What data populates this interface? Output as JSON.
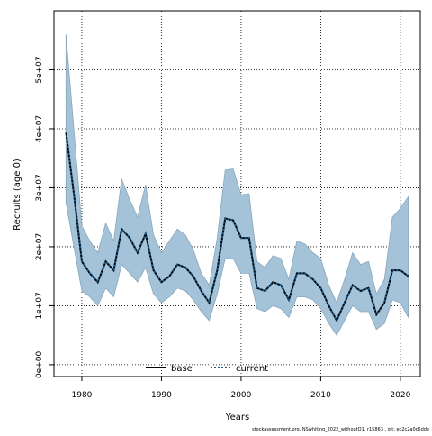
{
  "chart_data": {
    "type": "line",
    "title": "",
    "xlabel": "Years",
    "ylabel": "Recruits (age 0)",
    "xlim": [
      1976.5,
      2022.5
    ],
    "ylim": [
      -2000000,
      60000000
    ],
    "x_ticks": [
      1980,
      1990,
      2000,
      2010,
      2020
    ],
    "x_tick_labels": [
      "1980",
      "1990",
      "2000",
      "2010",
      "2020"
    ],
    "y_ticks": [
      0,
      10000000,
      20000000,
      30000000,
      40000000,
      50000000
    ],
    "y_tick_labels": [
      "0e+00",
      "1e+07",
      "2e+07",
      "3e+07",
      "4e+07",
      "5e+07"
    ],
    "grid": true,
    "legend_position": "bottom",
    "x": [
      1978,
      1979,
      1980,
      1981,
      1982,
      1983,
      1984,
      1985,
      1986,
      1987,
      1988,
      1989,
      1990,
      1991,
      1992,
      1993,
      1994,
      1995,
      1996,
      1997,
      1998,
      1999,
      2000,
      2001,
      2002,
      2003,
      2004,
      2005,
      2006,
      2007,
      2008,
      2009,
      2010,
      2011,
      2012,
      2013,
      2014,
      2015,
      2016,
      2017,
      2018,
      2019,
      2020,
      2021
    ],
    "series": [
      {
        "name": "current",
        "values": [
          39500000,
          29000000,
          17500000,
          15500000,
          14000000,
          17500000,
          16000000,
          23000000,
          21500000,
          19000000,
          22200000,
          16000000,
          14000000,
          15000000,
          17000000,
          16500000,
          15000000,
          12500000,
          10500000,
          16000000,
          24800000,
          24500000,
          21500000,
          21500000,
          13000000,
          12500000,
          14000000,
          13500000,
          11000000,
          15500000,
          15500000,
          14500000,
          13000000,
          10000000,
          7500000,
          10500000,
          13500000,
          12500000,
          13000000,
          8500000,
          10500000,
          16000000,
          16000000,
          15000000
        ]
      },
      {
        "name": "base",
        "values": [
          39500000,
          29000000,
          17500000,
          15500000,
          14000000,
          17500000,
          16000000,
          23000000,
          21500000,
          19000000,
          22200000,
          16000000,
          14000000,
          15000000,
          17000000,
          16500000,
          15000000,
          12500000,
          10500000,
          16000000,
          24800000,
          24500000,
          21500000,
          21500000,
          13000000,
          12500000,
          14000000,
          13500000,
          11000000,
          15500000,
          15500000,
          14500000,
          13000000,
          10000000,
          7500000,
          10500000,
          13500000,
          12500000,
          13000000,
          8500000,
          10500000,
          16000000,
          16000000,
          15000000
        ]
      }
    ],
    "band_upper": [
      56000000,
      40000000,
      23500000,
      21000000,
      19000000,
      24000000,
      21000000,
      31500000,
      28000000,
      25000000,
      30500000,
      22000000,
      19000000,
      21000000,
      23000000,
      22000000,
      19500000,
      15500000,
      13500000,
      21500000,
      33000000,
      33200000,
      28800000,
      29000000,
      17500000,
      16500000,
      18500000,
      18000000,
      14500000,
      21000000,
      20500000,
      19000000,
      18000000,
      13500000,
      10500000,
      14500000,
      19000000,
      17000000,
      17500000,
      12000000,
      14500000,
      25000000,
      26500000,
      28500000
    ],
    "band_lower": [
      27500000,
      20000000,
      12500000,
      11500000,
      10000000,
      13000000,
      11500000,
      17000000,
      15500000,
      14000000,
      16500000,
      12000000,
      10500000,
      11500000,
      13000000,
      12500000,
      11000000,
      9000000,
      7500000,
      12000000,
      18000000,
      18000000,
      15500000,
      15500000,
      9500000,
      9000000,
      10000000,
      9500000,
      8000000,
      11500000,
      11500000,
      11000000,
      9500000,
      7000000,
      5000000,
      7500000,
      10000000,
      9000000,
      9000000,
      6000000,
      7000000,
      11000000,
      10500000,
      8000000
    ],
    "band_color": "#a5c3d8",
    "band_edge_color": "#8aa8bc",
    "line_color": "#000000",
    "current_line_color": "#1a5a8a",
    "legend": [
      {
        "name": "base",
        "style": "solid"
      },
      {
        "name": "current",
        "style": "dotted"
      }
    ],
    "footer": "stockassessment.org, NSwhiting_2022_withoutQ1, r15863 , git: ec2c2a0c6dde"
  }
}
